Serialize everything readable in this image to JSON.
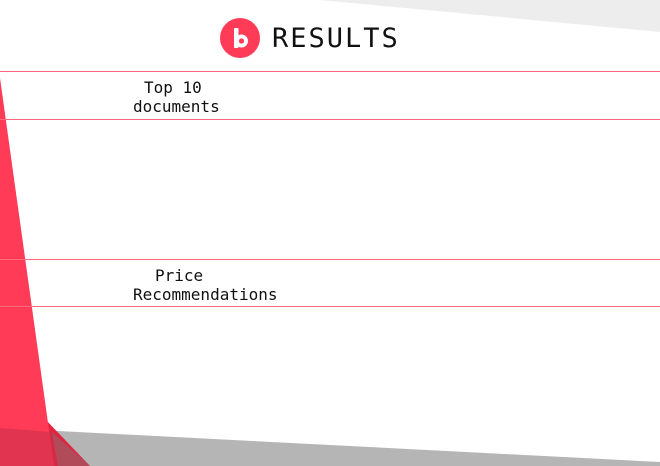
{
  "header": {
    "logo_letter": "b",
    "title": "RESULTS"
  },
  "sections": [
    {
      "line1": "Top 10",
      "line2": "documents"
    },
    {
      "line1": "Price",
      "line2": "Recommendations"
    }
  ],
  "colors": {
    "accent": "#ff3b58",
    "divider": "#ff6b7c",
    "gray_band": "#b3b3b3"
  }
}
